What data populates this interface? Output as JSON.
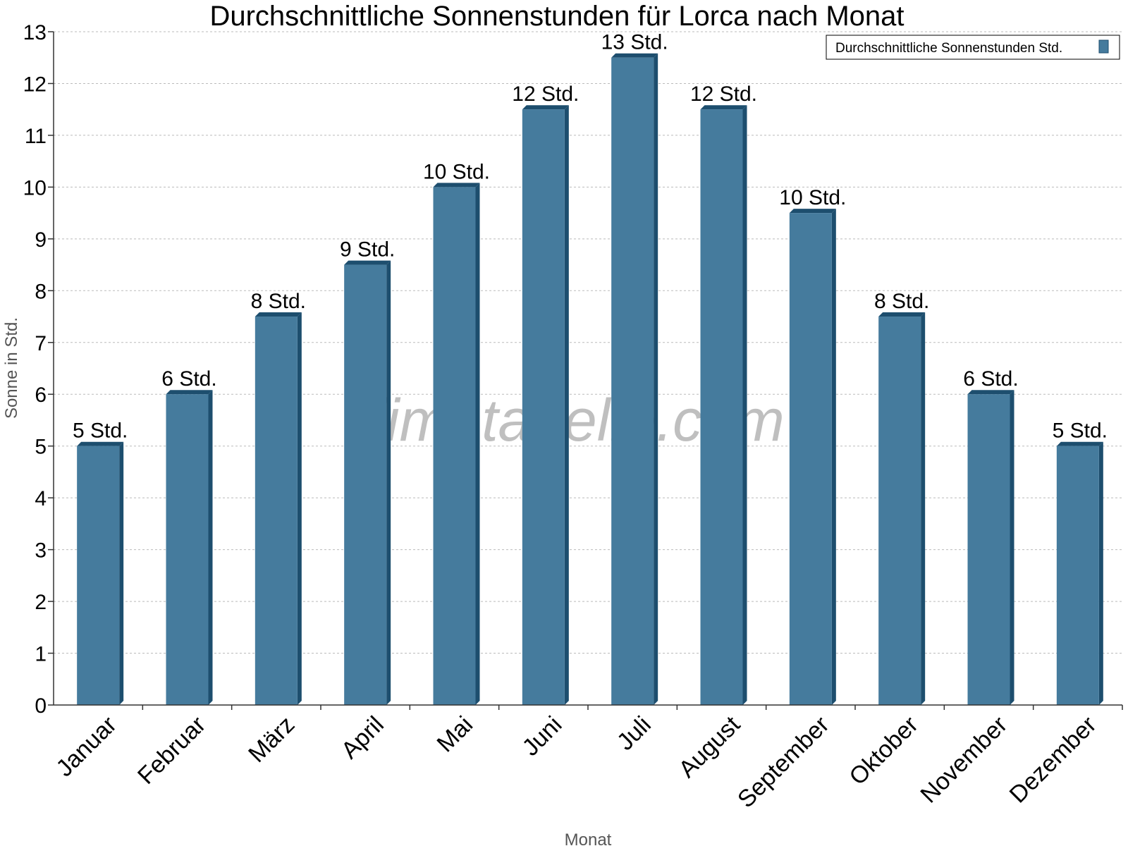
{
  "chart_data": {
    "type": "bar",
    "title": "Durchschnittliche Sonnenstunden für Lorca nach Monat",
    "xlabel": "Monat",
    "ylabel": "Sonne in Std.",
    "ylim": [
      0,
      13
    ],
    "yticks": [
      "0",
      "1",
      "2",
      "3",
      "4",
      "5",
      "6",
      "7",
      "8",
      "9",
      "10",
      "11",
      "12",
      "13"
    ],
    "grid": true,
    "legend_position": "top-right",
    "categories": [
      "Januar",
      "Februar",
      "März",
      "April",
      "Mai",
      "Juni",
      "Juli",
      "August",
      "September",
      "Oktober",
      "November",
      "Dezember"
    ],
    "series": [
      {
        "name": "Durchschnittliche Sonnenstunden Std.",
        "values": [
          5,
          6,
          7.5,
          8.5,
          10,
          11.5,
          12.5,
          11.5,
          9.5,
          7.5,
          6,
          5
        ],
        "data_labels": [
          "5 Std.",
          "6 Std.",
          "8 Std.",
          "9 Std.",
          "10 Std.",
          "12 Std.",
          "13 Std.",
          "12 Std.",
          "10 Std.",
          "8 Std.",
          "6 Std.",
          "5 Std."
        ],
        "color": "#457b9d",
        "side_color": "#1d4e6e"
      }
    ],
    "watermark": "klimatabelle.com"
  }
}
